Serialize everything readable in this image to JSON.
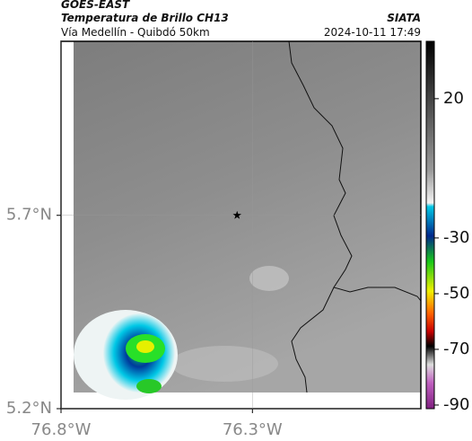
{
  "header": {
    "title": "GOES-EAST",
    "subtitle": "Temperatura de Brillo CH13",
    "region": "Vía Medellín - Quibdó 50km",
    "source": "SIATA",
    "datetime": "2024-10-11 17:49"
  },
  "map": {
    "xlim": [
      -76.8,
      -75.86
    ],
    "ylim": [
      5.2,
      6.15
    ],
    "xticks": [
      {
        "value": -76.8,
        "label": "76.8°W"
      },
      {
        "value": -76.3,
        "label": "76.3°W"
      }
    ],
    "yticks": [
      {
        "value": 5.2,
        "label": "5.2°N"
      },
      {
        "value": 5.7,
        "label": "5.7°N"
      }
    ],
    "grid": true,
    "marker": {
      "lon": -76.34,
      "lat": 5.7
    }
  },
  "colorbar": {
    "lim": [
      40.6,
      -91.3
    ],
    "ticks": [
      20,
      -30,
      -50,
      -70,
      -90
    ]
  }
}
